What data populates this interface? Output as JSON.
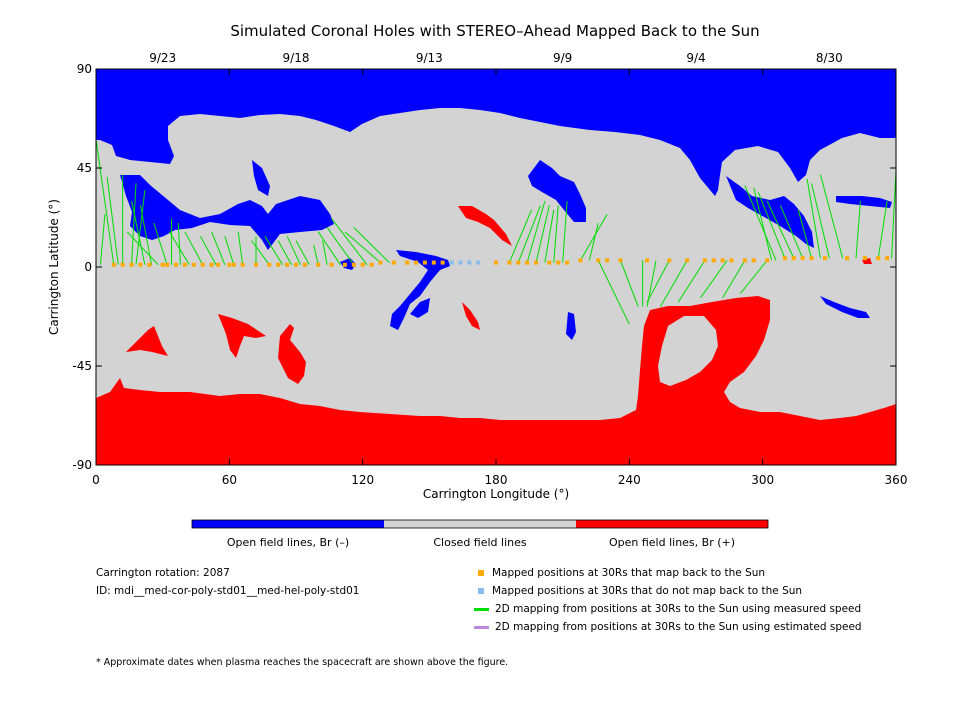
{
  "chart_data": {
    "type": "map",
    "title": "Simulated Coronal Holes with STEREO–Ahead Mapped Back to the Sun",
    "xlabel": "Carrington Longitude (°)",
    "ylabel": "Carrington Latitude (°)",
    "xlim": [
      0,
      360
    ],
    "ylim": [
      -90,
      90
    ],
    "x_ticks": [
      "0",
      "60",
      "120",
      "180",
      "240",
      "300",
      "360"
    ],
    "y_ticks": [
      "90",
      "45",
      "0",
      "-45",
      "-90"
    ],
    "top_dates": [
      {
        "label": "9/23",
        "lon": 30
      },
      {
        "label": "9/18",
        "lon": 90
      },
      {
        "label": "9/13",
        "lon": 150
      },
      {
        "label": "9/9",
        "lon": 210
      },
      {
        "label": "8/30",
        "lon": 330
      },
      {
        "label": "9/4",
        "lon": 270
      }
    ],
    "colorbar": [
      {
        "label": "Open field lines, Br (–)",
        "color": "#0000ff"
      },
      {
        "label": "Closed field lines",
        "color": "#d3d3d3"
      },
      {
        "label": "Open field lines, Br (+)",
        "color": "#ff0000"
      }
    ],
    "mapped_points": [
      [
        8,
        1
      ],
      [
        12,
        1
      ],
      [
        16,
        1
      ],
      [
        20,
        1
      ],
      [
        24,
        1
      ],
      [
        30,
        1
      ],
      [
        32,
        1
      ],
      [
        36,
        1
      ],
      [
        40,
        1
      ],
      [
        44,
        1
      ],
      [
        48,
        1
      ],
      [
        52,
        1
      ],
      [
        55,
        1
      ],
      [
        60,
        1
      ],
      [
        62,
        1
      ],
      [
        66,
        1
      ],
      [
        72,
        1
      ],
      [
        78,
        1
      ],
      [
        82,
        1
      ],
      [
        86,
        1
      ],
      [
        90,
        1
      ],
      [
        94,
        1
      ],
      [
        100,
        1
      ],
      [
        106,
        1
      ],
      [
        112,
        1
      ],
      [
        116,
        1
      ],
      [
        120,
        1
      ],
      [
        124,
        1
      ],
      [
        128,
        2
      ],
      [
        134,
        2
      ],
      [
        140,
        2
      ],
      [
        144,
        2
      ],
      [
        148,
        2
      ],
      [
        152,
        2
      ],
      [
        156,
        2
      ],
      [
        180,
        2
      ],
      [
        186,
        2
      ],
      [
        190,
        2
      ],
      [
        194,
        2
      ],
      [
        198,
        2
      ],
      [
        204,
        2
      ],
      [
        208,
        2
      ],
      [
        212,
        2
      ],
      [
        218,
        3
      ],
      [
        226,
        3
      ],
      [
        230,
        3
      ],
      [
        236,
        3
      ],
      [
        248,
        3
      ],
      [
        258,
        3
      ],
      [
        266,
        3
      ],
      [
        274,
        3
      ],
      [
        278,
        3
      ],
      [
        282,
        3
      ],
      [
        286,
        3
      ],
      [
        292,
        3
      ],
      [
        296,
        3
      ],
      [
        302,
        3
      ],
      [
        310,
        4
      ],
      [
        314,
        4
      ],
      [
        318,
        4
      ],
      [
        322,
        4
      ],
      [
        328,
        4
      ],
      [
        338,
        4
      ],
      [
        346,
        4
      ],
      [
        352,
        4
      ],
      [
        356,
        4
      ]
    ],
    "unmapped_points": [
      [
        160,
        2
      ],
      [
        164,
        2
      ],
      [
        168,
        2
      ],
      [
        172,
        2
      ]
    ],
    "mappings": [
      [
        8,
        1,
        0,
        58
      ],
      [
        10,
        1,
        5,
        41
      ],
      [
        12,
        1,
        12,
        42
      ],
      [
        16,
        1,
        18,
        38
      ],
      [
        18,
        1,
        22,
        35
      ],
      [
        22,
        1,
        16,
        30
      ],
      [
        25,
        1,
        20,
        28
      ],
      [
        28,
        1,
        14,
        16
      ],
      [
        32,
        1,
        26,
        20
      ],
      [
        34,
        1,
        34,
        22
      ],
      [
        38,
        1,
        37,
        20
      ],
      [
        42,
        1,
        33,
        16
      ],
      [
        48,
        1,
        40,
        16
      ],
      [
        54,
        1,
        47,
        14
      ],
      [
        58,
        1,
        52,
        16
      ],
      [
        62,
        1,
        58,
        14
      ],
      [
        66,
        1,
        64,
        16
      ],
      [
        72,
        1,
        72,
        14
      ],
      [
        78,
        1,
        70,
        12
      ],
      [
        84,
        1,
        76,
        14
      ],
      [
        88,
        1,
        82,
        12
      ],
      [
        92,
        1,
        86,
        14
      ],
      [
        96,
        1,
        90,
        12
      ],
      [
        100,
        1,
        98,
        10
      ],
      [
        104,
        1,
        102,
        12
      ],
      [
        110,
        1,
        100,
        16
      ],
      [
        116,
        1,
        104,
        18
      ],
      [
        122,
        1,
        106,
        22
      ],
      [
        128,
        2,
        112,
        16
      ],
      [
        132,
        2,
        116,
        18
      ],
      [
        186,
        2,
        196,
        26
      ],
      [
        190,
        2,
        200,
        28
      ],
      [
        194,
        2,
        202,
        30
      ],
      [
        198,
        2,
        204,
        28
      ],
      [
        202,
        2,
        206,
        26
      ],
      [
        206,
        2,
        208,
        28
      ],
      [
        210,
        2,
        212,
        30
      ],
      [
        218,
        3,
        230,
        24
      ],
      [
        222,
        3,
        226,
        20
      ],
      [
        226,
        3,
        240,
        -26
      ],
      [
        236,
        3,
        244,
        -18
      ],
      [
        246,
        3,
        246,
        -18
      ],
      [
        252,
        3,
        248,
        -18
      ],
      [
        258,
        3,
        248,
        -16
      ],
      [
        266,
        3,
        254,
        -18
      ],
      [
        274,
        3,
        262,
        -16
      ],
      [
        284,
        3,
        272,
        -14
      ],
      [
        292,
        3,
        282,
        -14
      ],
      [
        302,
        3,
        290,
        -12
      ],
      [
        304,
        3,
        296,
        36
      ],
      [
        306,
        3,
        292,
        37
      ],
      [
        310,
        4,
        298,
        34
      ],
      [
        314,
        4,
        302,
        30
      ],
      [
        318,
        4,
        308,
        28
      ],
      [
        322,
        4,
        316,
        26
      ],
      [
        326,
        4,
        320,
        40
      ],
      [
        330,
        4,
        322,
        38
      ],
      [
        336,
        4,
        326,
        42
      ],
      [
        342,
        4,
        344,
        30
      ],
      [
        352,
        4,
        356,
        30
      ],
      [
        358,
        4,
        360,
        44
      ],
      [
        0,
        1,
        0,
        16
      ],
      [
        2,
        1,
        4,
        24
      ]
    ],
    "info": {
      "rotation": "Carrington rotation: 2087",
      "id": "ID: mdi__med-cor-poly-std01__med-hel-poly-std01"
    },
    "legend": [
      {
        "label": "Mapped positions at 30Rs that map back to the Sun",
        "kind": "square",
        "color": "#ffaa00"
      },
      {
        "label": "Mapped positions at 30Rs that do not map back to the Sun",
        "kind": "square",
        "color": "#88bbee"
      },
      {
        "label": "2D mapping from positions at 30Rs to the Sun using measured speed",
        "kind": "line",
        "color": "#00dd00"
      },
      {
        "label": "2D mapping from positions at 30Rs to the Sun using estimated speed",
        "kind": "line",
        "color": "#bb88dd"
      }
    ],
    "footnote": "* Approximate dates when plasma reaches the spacecraft are shown above the figure."
  }
}
